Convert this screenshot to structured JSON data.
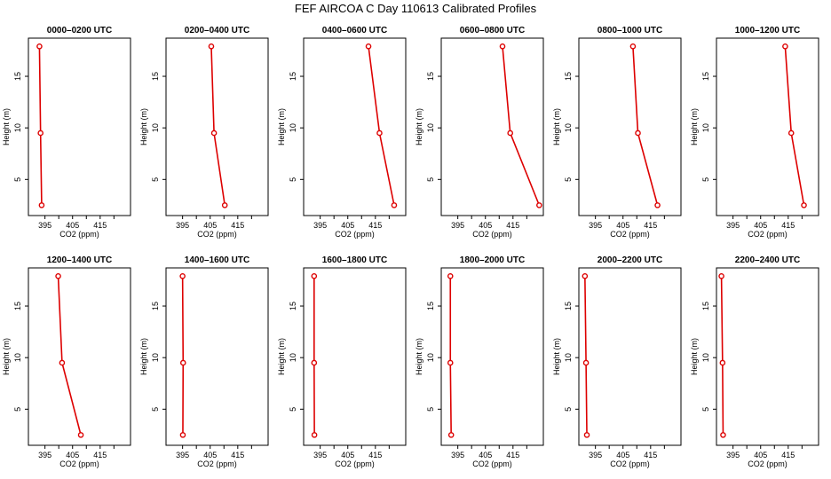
{
  "figure": {
    "title": "FEF AIRCOA C  Day 110613  Calibrated Profiles"
  },
  "style": {
    "line_color": "#dd0000",
    "axis_color": "#000000"
  },
  "chart_data": [
    {
      "type": "line",
      "title": "0000–0200 UTC",
      "xlabel": "CO2 (ppm)",
      "ylabel": "Height (m)",
      "xlim": [
        389,
        426
      ],
      "ylim": [
        1.5,
        18.7
      ],
      "xticks": [
        395,
        405,
        415
      ],
      "yticks": [
        5,
        10,
        15
      ],
      "series": [
        {
          "x": [
            393.8,
            393.4,
            393.0
          ],
          "y": [
            2.5,
            9.5,
            17.9
          ]
        }
      ]
    },
    {
      "type": "line",
      "title": "0200–0400 UTC",
      "xlabel": "CO2 (ppm)",
      "ylabel": "Height (m)",
      "xlim": [
        389,
        426
      ],
      "ylim": [
        1.5,
        18.7
      ],
      "xticks": [
        395,
        405,
        415
      ],
      "yticks": [
        5,
        10,
        15
      ],
      "series": [
        {
          "x": [
            410.3,
            406.4,
            405.4
          ],
          "y": [
            2.5,
            9.5,
            17.9
          ]
        }
      ]
    },
    {
      "type": "line",
      "title": "0400–0600 UTC",
      "xlabel": "CO2 (ppm)",
      "ylabel": "Height (m)",
      "xlim": [
        389,
        426
      ],
      "ylim": [
        1.5,
        18.7
      ],
      "xticks": [
        395,
        405,
        415
      ],
      "yticks": [
        5,
        10,
        15
      ],
      "series": [
        {
          "x": [
            421.8,
            416.5,
            412.5
          ],
          "y": [
            2.5,
            9.5,
            17.9
          ]
        }
      ]
    },
    {
      "type": "line",
      "title": "0600–0800 UTC",
      "xlabel": "CO2 (ppm)",
      "ylabel": "Height (m)",
      "xlim": [
        389,
        426
      ],
      "ylim": [
        1.5,
        18.7
      ],
      "xticks": [
        395,
        405,
        415
      ],
      "yticks": [
        5,
        10,
        15
      ],
      "series": [
        {
          "x": [
            424.5,
            414.0,
            411.2
          ],
          "y": [
            2.5,
            9.5,
            17.9
          ]
        }
      ]
    },
    {
      "type": "line",
      "title": "0800–1000 UTC",
      "xlabel": "CO2 (ppm)",
      "ylabel": "Height (m)",
      "xlim": [
        389,
        426
      ],
      "ylim": [
        1.5,
        18.7
      ],
      "xticks": [
        395,
        405,
        415
      ],
      "yticks": [
        5,
        10,
        15
      ],
      "series": [
        {
          "x": [
            417.5,
            410.4,
            408.6
          ],
          "y": [
            2.5,
            9.5,
            17.9
          ]
        }
      ]
    },
    {
      "type": "line",
      "title": "1000–1200 UTC",
      "xlabel": "CO2 (ppm)",
      "ylabel": "Height (m)",
      "xlim": [
        389,
        426
      ],
      "ylim": [
        1.5,
        18.7
      ],
      "xticks": [
        395,
        405,
        415
      ],
      "yticks": [
        5,
        10,
        15
      ],
      "series": [
        {
          "x": [
            420.7,
            416.1,
            413.9
          ],
          "y": [
            2.5,
            9.5,
            17.9
          ]
        }
      ]
    },
    {
      "type": "line",
      "title": "1200–1400 UTC",
      "xlabel": "CO2 (ppm)",
      "ylabel": "Height (m)",
      "xlim": [
        389,
        426
      ],
      "ylim": [
        1.5,
        18.7
      ],
      "xticks": [
        395,
        405,
        415
      ],
      "yticks": [
        5,
        10,
        15
      ],
      "series": [
        {
          "x": [
            408.0,
            401.2,
            399.8
          ],
          "y": [
            2.5,
            9.5,
            17.9
          ]
        }
      ]
    },
    {
      "type": "line",
      "title": "1400–1600 UTC",
      "xlabel": "CO2 (ppm)",
      "ylabel": "Height (m)",
      "xlim": [
        389,
        426
      ],
      "ylim": [
        1.5,
        18.7
      ],
      "xticks": [
        395,
        405,
        415
      ],
      "yticks": [
        5,
        10,
        15
      ],
      "series": [
        {
          "x": [
            395.1,
            395.2,
            395.0
          ],
          "y": [
            2.5,
            9.5,
            17.9
          ]
        }
      ]
    },
    {
      "type": "line",
      "title": "1600–1800 UTC",
      "xlabel": "CO2 (ppm)",
      "ylabel": "Height (m)",
      "xlim": [
        389,
        426
      ],
      "ylim": [
        1.5,
        18.7
      ],
      "xticks": [
        395,
        405,
        415
      ],
      "yticks": [
        5,
        10,
        15
      ],
      "series": [
        {
          "x": [
            392.9,
            392.8,
            392.8
          ],
          "y": [
            2.5,
            9.5,
            17.9
          ]
        }
      ]
    },
    {
      "type": "line",
      "title": "1800–2000 UTC",
      "xlabel": "CO2 (ppm)",
      "ylabel": "Height (m)",
      "xlim": [
        389,
        426
      ],
      "ylim": [
        1.5,
        18.7
      ],
      "xticks": [
        395,
        405,
        415
      ],
      "yticks": [
        5,
        10,
        15
      ],
      "series": [
        {
          "x": [
            392.6,
            392.3,
            392.3
          ],
          "y": [
            2.5,
            9.5,
            17.9
          ]
        }
      ]
    },
    {
      "type": "line",
      "title": "2000–2200 UTC",
      "xlabel": "CO2 (ppm)",
      "ylabel": "Height (m)",
      "xlim": [
        389,
        426
      ],
      "ylim": [
        1.5,
        18.7
      ],
      "xticks": [
        395,
        405,
        415
      ],
      "yticks": [
        5,
        10,
        15
      ],
      "series": [
        {
          "x": [
            391.9,
            391.6,
            391.2
          ],
          "y": [
            2.5,
            9.5,
            17.9
          ]
        }
      ]
    },
    {
      "type": "line",
      "title": "2200–2400 UTC",
      "xlabel": "CO2 (ppm)",
      "ylabel": "Height (m)",
      "xlim": [
        389,
        426
      ],
      "ylim": [
        1.5,
        18.7
      ],
      "xticks": [
        395,
        405,
        415
      ],
      "yticks": [
        5,
        10,
        15
      ],
      "series": [
        {
          "x": [
            391.4,
            391.2,
            390.8
          ],
          "y": [
            2.5,
            9.5,
            17.9
          ]
        }
      ]
    }
  ]
}
